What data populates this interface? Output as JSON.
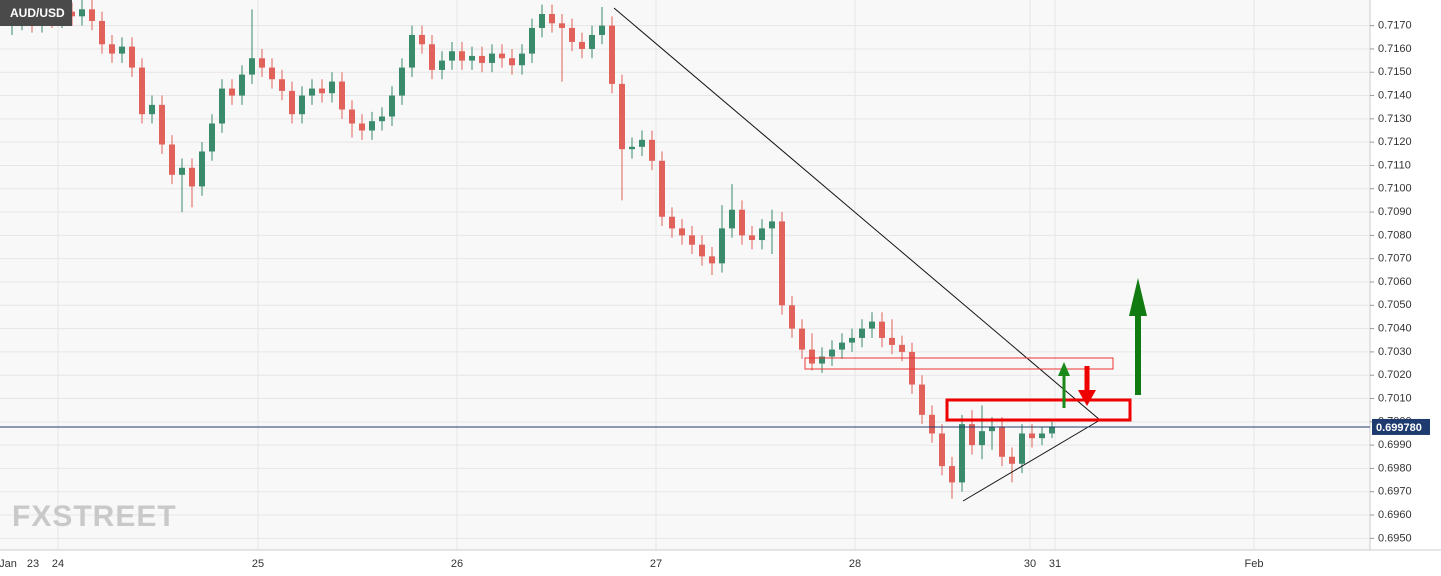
{
  "chart_data": {
    "type": "candlestick",
    "title": "AUD/USD",
    "watermark": "FXSTREET",
    "up_color": "#3a8a6c",
    "down_color": "#e0625a",
    "open": [
      0.717,
      0.7172,
      0.7174,
      0.7171,
      0.7175,
      0.7173,
      0.7176,
      0.7174,
      0.7177,
      0.7172,
      0.7162,
      0.7158,
      0.7161,
      0.7152,
      0.7132,
      0.7136,
      0.7119,
      0.7106,
      0.7109,
      0.7101,
      0.7116,
      0.7128,
      0.7143,
      0.714,
      0.7149,
      0.7156,
      0.7152,
      0.7147,
      0.7142,
      0.7132,
      0.714,
      0.7143,
      0.7141,
      0.7146,
      0.7134,
      0.7128,
      0.7125,
      0.7129,
      0.7131,
      0.714,
      0.7152,
      0.7166,
      0.7162,
      0.7151,
      0.7155,
      0.7159,
      0.7155,
      0.7157,
      0.7154,
      0.7158,
      0.7156,
      0.7153,
      0.7158,
      0.7169,
      0.7175,
      0.7171,
      0.7169,
      0.7163,
      0.716,
      0.7166,
      0.717,
      0.7145,
      0.7117,
      0.7118,
      0.7121,
      0.7112,
      0.7088,
      0.7083,
      0.708,
      0.7076,
      0.7071,
      0.7068,
      0.7083,
      0.7091,
      0.708,
      0.7078,
      0.7083,
      0.7086,
      0.705,
      0.704,
      0.7031,
      0.7025,
      0.7028,
      0.7031,
      0.7034,
      0.7036,
      0.704,
      0.7043,
      0.7036,
      0.7033,
      0.703,
      0.7016,
      0.7003,
      0.6995,
      0.6981,
      0.6974,
      0.6999,
      0.699,
      0.6996,
      0.6998,
      0.6985,
      0.6982,
      0.6995,
      0.6993,
      0.6995
    ],
    "high": [
      0.7176,
      0.7178,
      0.7178,
      0.7179,
      0.7179,
      0.718,
      0.718,
      0.7181,
      0.7181,
      0.7176,
      0.7166,
      0.7165,
      0.7165,
      0.7156,
      0.714,
      0.714,
      0.7123,
      0.7113,
      0.7113,
      0.712,
      0.7132,
      0.7147,
      0.7147,
      0.7153,
      0.7177,
      0.716,
      0.7156,
      0.7151,
      0.7146,
      0.7144,
      0.7147,
      0.7147,
      0.715,
      0.715,
      0.7138,
      0.7132,
      0.7133,
      0.7135,
      0.7144,
      0.7156,
      0.717,
      0.717,
      0.7166,
      0.7159,
      0.7163,
      0.7163,
      0.7161,
      0.7161,
      0.7162,
      0.7162,
      0.716,
      0.7162,
      0.7173,
      0.7179,
      0.7179,
      0.7175,
      0.7173,
      0.7167,
      0.717,
      0.7178,
      0.7174,
      0.7149,
      0.7122,
      0.7125,
      0.7125,
      0.7116,
      0.7092,
      0.7087,
      0.7084,
      0.708,
      0.7075,
      0.7093,
      0.7102,
      0.7095,
      0.7084,
      0.7087,
      0.7091,
      0.709,
      0.7054,
      0.7044,
      0.7038,
      0.7032,
      0.7035,
      0.7038,
      0.704,
      0.7044,
      0.7047,
      0.7047,
      0.7044,
      0.7037,
      0.7034,
      0.702,
      0.7007,
      0.6999,
      0.6985,
      0.7003,
      0.7005,
      0.7007,
      0.7002,
      0.7002,
      0.6989,
      0.6999,
      0.6999,
      0.6998,
      0.7
    ],
    "low": [
      0.7166,
      0.7168,
      0.7167,
      0.7167,
      0.7169,
      0.7169,
      0.717,
      0.717,
      0.7168,
      0.7158,
      0.7154,
      0.7154,
      0.7148,
      0.7128,
      0.7128,
      0.7115,
      0.7102,
      0.709,
      0.7092,
      0.7097,
      0.7112,
      0.7124,
      0.7136,
      0.7136,
      0.7145,
      0.7148,
      0.7143,
      0.7138,
      0.7128,
      0.7128,
      0.7136,
      0.7137,
      0.7137,
      0.713,
      0.7122,
      0.7121,
      0.7121,
      0.7125,
      0.7127,
      0.7136,
      0.7148,
      0.7158,
      0.7147,
      0.7147,
      0.7151,
      0.7151,
      0.7151,
      0.715,
      0.715,
      0.7152,
      0.7149,
      0.7149,
      0.7154,
      0.7165,
      0.7167,
      0.7146,
      0.7159,
      0.7156,
      0.7156,
      0.7162,
      0.7141,
      0.7095,
      0.7113,
      0.7114,
      0.7108,
      0.7084,
      0.7079,
      0.7076,
      0.7072,
      0.7067,
      0.7063,
      0.7064,
      0.7079,
      0.7076,
      0.7074,
      0.7074,
      0.7072,
      0.7046,
      0.7036,
      0.7027,
      0.7022,
      0.7021,
      0.7024,
      0.7027,
      0.703,
      0.7032,
      0.7036,
      0.7032,
      0.7029,
      0.7026,
      0.7012,
      0.6999,
      0.6991,
      0.6977,
      0.6967,
      0.697,
      0.6986,
      0.6984,
      0.6988,
      0.6981,
      0.6974,
      0.6978,
      0.6989,
      0.699,
      0.6993
    ],
    "close": [
      0.7172,
      0.7174,
      0.7171,
      0.7175,
      0.7173,
      0.7176,
      0.7174,
      0.7177,
      0.7172,
      0.7162,
      0.7158,
      0.7161,
      0.7152,
      0.7132,
      0.7136,
      0.7119,
      0.7106,
      0.7109,
      0.7101,
      0.7116,
      0.7128,
      0.7143,
      0.714,
      0.7149,
      0.7156,
      0.7152,
      0.7147,
      0.7142,
      0.7132,
      0.714,
      0.7143,
      0.7141,
      0.7146,
      0.7134,
      0.7128,
      0.7125,
      0.7129,
      0.7131,
      0.714,
      0.7152,
      0.7166,
      0.7162,
      0.7151,
      0.7155,
      0.7159,
      0.7155,
      0.7157,
      0.7154,
      0.7158,
      0.7156,
      0.7153,
      0.7158,
      0.7169,
      0.7175,
      0.7171,
      0.7169,
      0.7163,
      0.716,
      0.7166,
      0.717,
      0.7145,
      0.7117,
      0.7118,
      0.7121,
      0.7112,
      0.7088,
      0.7083,
      0.708,
      0.7076,
      0.7071,
      0.7068,
      0.7083,
      0.7091,
      0.708,
      0.7078,
      0.7083,
      0.7086,
      0.705,
      0.704,
      0.7031,
      0.7025,
      0.7028,
      0.7031,
      0.7034,
      0.7036,
      0.704,
      0.7043,
      0.7036,
      0.7033,
      0.703,
      0.7016,
      0.7003,
      0.6995,
      0.6981,
      0.6974,
      0.6999,
      0.699,
      0.6996,
      0.6998,
      0.6985,
      0.6982,
      0.6995,
      0.6993,
      0.6995,
      0.6998
    ],
    "xtick_labels": [
      "Jan",
      "23",
      "24",
      "25",
      "26",
      "27",
      "28",
      "30",
      "31",
      "Feb"
    ],
    "ylim": [
      0.6945,
      0.7181
    ],
    "yticks": [
      {
        "value": 0.695,
        "label": "0.6950"
      },
      {
        "value": 0.696,
        "label": "0.6960"
      },
      {
        "value": 0.697,
        "label": "0.6970"
      },
      {
        "value": 0.698,
        "label": "0.6980"
      },
      {
        "value": 0.699,
        "label": "0.6990"
      },
      {
        "value": 0.7,
        "label": "0.7000"
      },
      {
        "value": 0.701,
        "label": "0.7010"
      },
      {
        "value": 0.702,
        "label": "0.7020"
      },
      {
        "value": 0.703,
        "label": "0.7030"
      },
      {
        "value": 0.704,
        "label": "0.7040"
      },
      {
        "value": 0.705,
        "label": "0.7050"
      },
      {
        "value": 0.706,
        "label": "0.7060"
      },
      {
        "value": 0.707,
        "label": "0.7070"
      },
      {
        "value": 0.708,
        "label": "0.7080"
      },
      {
        "value": 0.709,
        "label": "0.7090"
      },
      {
        "value": 0.71,
        "label": "0.7100"
      },
      {
        "value": 0.711,
        "label": "0.7110"
      },
      {
        "value": 0.712,
        "label": "0.7120"
      },
      {
        "value": 0.713,
        "label": "0.7130"
      },
      {
        "value": 0.714,
        "label": "0.7140"
      },
      {
        "value": 0.715,
        "label": "0.7150"
      },
      {
        "value": 0.716,
        "label": "0.7160"
      },
      {
        "value": 0.717,
        "label": "0.7170"
      }
    ],
    "last_price": {
      "value": 0.69978,
      "label": "0.699780"
    },
    "grid": true
  }
}
